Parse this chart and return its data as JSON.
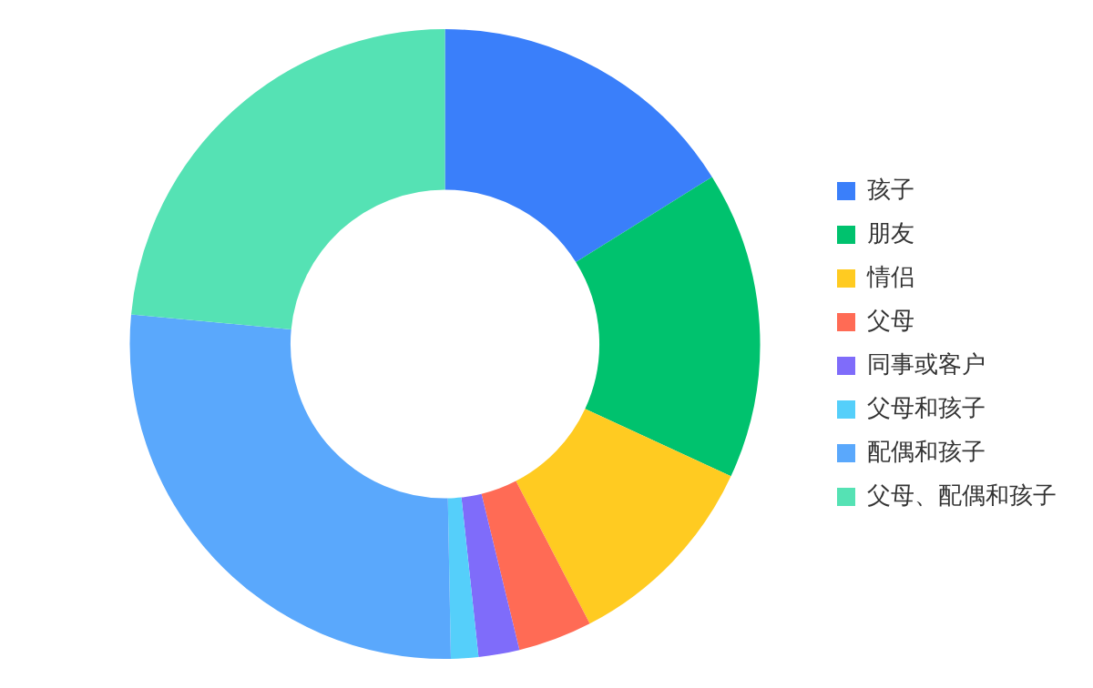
{
  "chart_data": {
    "type": "donut",
    "categories": [
      "孩子",
      "朋友",
      "情侣",
      "父母",
      "同事或客户",
      "父母和孩子",
      "配偶和孩子",
      "父母、配偶和孩子"
    ],
    "values": [
      16.1,
      15.8,
      10.5,
      3.8,
      2.1,
      1.4,
      26.8,
      23.5
    ],
    "colors": [
      "#3a7ffa",
      "#00c26e",
      "#ffcb21",
      "#ff6b55",
      "#7f6cfa",
      "#55cffa",
      "#5aa8fc",
      "#55e2b4"
    ],
    "legend": "right"
  }
}
